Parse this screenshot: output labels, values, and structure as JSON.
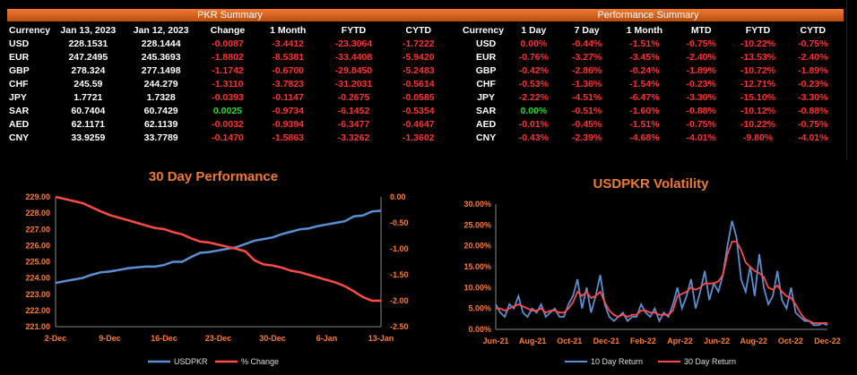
{
  "pkr_summary": {
    "title": "PKR Summary",
    "headers": [
      "Currency",
      "Jan 13, 2023",
      "Jan 12, 2023",
      "Change",
      "1 Month",
      "FYTD",
      "CYTD"
    ],
    "rows": [
      [
        "USD",
        "228.1531",
        "228.1444",
        "-0.0087",
        "-3.4412",
        "-23.3064",
        "-1.7222"
      ],
      [
        "EUR",
        "247.2495",
        "245.3693",
        "-1.8802",
        "-8.5381",
        "-33.4408",
        "-5.9420"
      ],
      [
        "GBP",
        "278.324",
        "277.1498",
        "-1.1742",
        "-0.6700",
        "-29.8450",
        "-5.2483"
      ],
      [
        "CHF",
        "245.59",
        "244.279",
        "-1.3110",
        "-3.7823",
        "-31.2031",
        "-0.5614"
      ],
      [
        "JPY",
        "1.7721",
        "1.7328",
        "-0.0393",
        "-0.1147",
        "-0.2675",
        "-0.0585"
      ],
      [
        "SAR",
        "60.7404",
        "60.7429",
        "0.0025",
        "-0.9734",
        "-6.1452",
        "-0.5354"
      ],
      [
        "AED",
        "62.1171",
        "62.1139",
        "-0.0032",
        "-0.9394",
        "-6.3477",
        "-0.4647"
      ],
      [
        "CNY",
        "33.9259",
        "33.7789",
        "-0.1470",
        "-1.5863",
        "-3.3262",
        "-1.3602"
      ]
    ]
  },
  "performance_summary": {
    "title": "Performance Summary",
    "headers": [
      "Currency",
      "1 Day",
      "7 Day",
      "1 Month",
      "MTD",
      "FYTD",
      "CYTD"
    ],
    "rows": [
      [
        "USD",
        "0.00%",
        "-0.44%",
        "-1.51%",
        "-0.75%",
        "-10.22%",
        "-0.75%"
      ],
      [
        "EUR",
        "-0.76%",
        "-3.27%",
        "-3.45%",
        "-2.40%",
        "-13.53%",
        "-2.40%"
      ],
      [
        "GBP",
        "-0.42%",
        "-2.86%",
        "-0.24%",
        "-1.89%",
        "-10.72%",
        "-1.89%"
      ],
      [
        "CHF",
        "-0.53%",
        "-1.36%",
        "-1.54%",
        "-0.23%",
        "-12.71%",
        "-0.23%"
      ],
      [
        "JPY",
        "-2.22%",
        "-4.51%",
        "-6.47%",
        "-3.30%",
        "-15.10%",
        "-3.30%"
      ],
      [
        "SAR",
        "0.00%",
        "-0.51%",
        "-1.60%",
        "-0.88%",
        "-10.12%",
        "-0.88%"
      ],
      [
        "AED",
        "-0.01%",
        "-0.45%",
        "-1.51%",
        "-0.75%",
        "-10.22%",
        "-0.75%"
      ],
      [
        "CNY",
        "-0.43%",
        "-2.39%",
        "-4.68%",
        "-4.01%",
        "-9.80%",
        "-4.01%"
      ]
    ]
  },
  "colors": {
    "negative": "#ff3030",
    "positive": "#22dd22",
    "blue": "#5b8fd4",
    "red": "#ff4a4a",
    "title_orange": "#f07a30"
  },
  "chart_data": [
    {
      "type": "line",
      "title": "30 Day Performance",
      "x_ticks": [
        "2-Dec",
        "9-Dec",
        "16-Dec",
        "23-Dec",
        "30-Dec",
        "6-Jan",
        "13-Jan"
      ],
      "y_left_ticks": [
        "229.00",
        "228.00",
        "227.00",
        "226.00",
        "225.00",
        "224.00",
        "223.00",
        "222.00",
        "221.00"
      ],
      "y_right_ticks": [
        "0.00",
        "-0.50",
        "-1.00",
        "-1.50",
        "-2.00",
        "-2.50"
      ],
      "ylim_left": [
        221,
        229
      ],
      "ylim_right": [
        -2.5,
        0
      ],
      "legend": [
        "USDPKR",
        "% Change"
      ],
      "legend_position": "bottom",
      "series": [
        {
          "name": "USDPKR",
          "axis": "left",
          "color": "#5b8fd4",
          "values": [
            223.7,
            223.8,
            223.9,
            224.0,
            224.2,
            224.35,
            224.4,
            224.5,
            224.6,
            224.65,
            224.7,
            224.7,
            224.8,
            225.0,
            225.0,
            225.3,
            225.55,
            225.6,
            225.7,
            225.8,
            225.9,
            226.1,
            226.3,
            226.4,
            226.5,
            226.7,
            226.85,
            227.0,
            227.05,
            227.2,
            227.3,
            227.4,
            227.5,
            227.8,
            227.85,
            228.1,
            228.15
          ]
        },
        {
          "name": "% Change",
          "axis": "right",
          "color": "#ff4a4a",
          "values": [
            0.0,
            -0.04,
            -0.08,
            -0.12,
            -0.2,
            -0.28,
            -0.35,
            -0.4,
            -0.45,
            -0.5,
            -0.55,
            -0.6,
            -0.62,
            -0.68,
            -0.72,
            -0.8,
            -0.86,
            -0.88,
            -0.92,
            -0.96,
            -1.0,
            -1.05,
            -1.22,
            -1.3,
            -1.32,
            -1.36,
            -1.42,
            -1.45,
            -1.5,
            -1.55,
            -1.6,
            -1.65,
            -1.72,
            -1.82,
            -1.93,
            -2.0,
            -2.0
          ]
        }
      ]
    },
    {
      "type": "line",
      "title": "USDPKR Volatility",
      "x_ticks": [
        "Jun-21",
        "Aug-21",
        "Oct-21",
        "Dec-21",
        "Feb-22",
        "Apr-22",
        "Jun-22",
        "Aug-22",
        "Oct-22",
        "Dec-22"
      ],
      "y_ticks": [
        "30.00%",
        "25.00%",
        "20.00%",
        "15.00%",
        "10.00%",
        "5.00%",
        "0.00%"
      ],
      "ylim": [
        0,
        30
      ],
      "legend": [
        "10 Day Return",
        "30 Day Return"
      ],
      "legend_position": "bottom",
      "series": [
        {
          "name": "10 Day Return",
          "color": "#5b8fd4",
          "values": [
            6,
            4,
            3,
            6,
            5,
            8,
            4,
            3,
            5,
            4,
            6,
            3,
            4,
            5,
            3,
            3,
            6,
            8,
            12,
            5,
            10,
            4,
            8,
            13,
            6,
            3,
            2,
            3,
            4,
            2,
            3,
            3,
            6,
            4,
            3,
            5,
            2,
            4,
            3,
            6,
            10,
            5,
            8,
            12,
            5,
            9,
            14,
            7,
            11,
            9,
            13,
            20,
            26,
            22,
            12,
            9,
            15,
            8,
            18,
            10,
            6,
            8,
            14,
            7,
            5,
            10,
            4,
            3,
            2,
            2,
            1,
            1,
            1.5,
            1
          ]
        },
        {
          "name": "30 Day Return",
          "color": "#ff4a4a",
          "values": [
            5,
            5,
            4.5,
            5,
            5.5,
            6,
            5.5,
            5,
            4.5,
            4.5,
            5,
            4,
            4.5,
            4.5,
            4,
            4,
            5,
            6.5,
            9,
            8,
            9,
            7.5,
            8,
            9,
            6.5,
            4.5,
            3.5,
            3,
            3.5,
            3,
            3.5,
            3.5,
            4.5,
            4.5,
            4,
            4,
            3.5,
            3.5,
            3.5,
            4.5,
            8,
            8.5,
            9,
            10,
            9.5,
            10,
            11,
            11,
            11,
            11.5,
            13,
            18,
            21,
            21,
            19,
            16,
            15,
            14,
            13.5,
            12.5,
            10,
            9.5,
            10.5,
            9,
            8,
            7.5,
            6,
            4,
            2.5,
            2,
            1.5,
            1.5,
            1.5,
            1.5
          ]
        }
      ]
    }
  ]
}
